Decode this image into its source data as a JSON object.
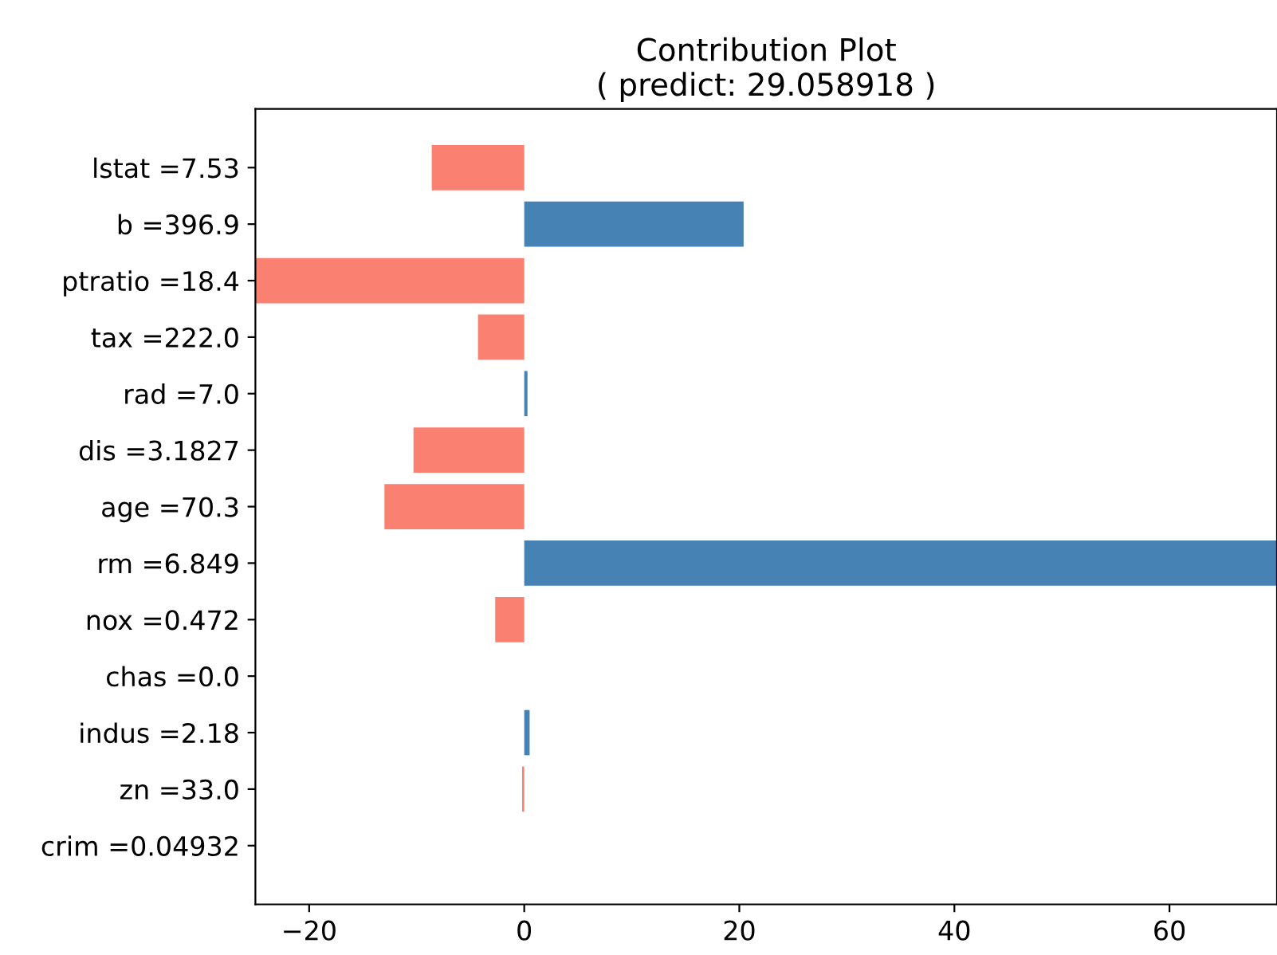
{
  "chart_data": {
    "type": "bar",
    "orientation": "horizontal",
    "title": "Contribution Plot\n( predict: 29.058918 )",
    "categories": [
      "lstat =7.53",
      "b =396.9",
      "ptratio =18.4",
      "tax =222.0",
      "rad =7.0",
      "dis =3.1827",
      "age =70.3",
      "rm =6.849",
      "nox =0.472",
      "chas =0.0",
      "indus =2.18",
      "zn =33.0",
      "crim =0.04932"
    ],
    "values": [
      -8.6,
      20.4,
      -25,
      -4.3,
      0.3,
      -10.3,
      -13.0,
      70,
      -2.7,
      0,
      0.5,
      -0.2,
      0
    ],
    "colors": [
      "#fa8072",
      "#4682b4",
      "#fa8072",
      "#fa8072",
      "#4682b4",
      "#fa8072",
      "#fa8072",
      "#4682b4",
      "#fa8072",
      "#fa8072",
      "#4682b4",
      "#fa8072",
      "#fa8072"
    ],
    "xlim": [
      -25,
      70
    ],
    "xticks": [
      {
        "value": -20,
        "label": "−20"
      },
      0,
      20,
      40,
      60
    ],
    "grid": false
  }
}
